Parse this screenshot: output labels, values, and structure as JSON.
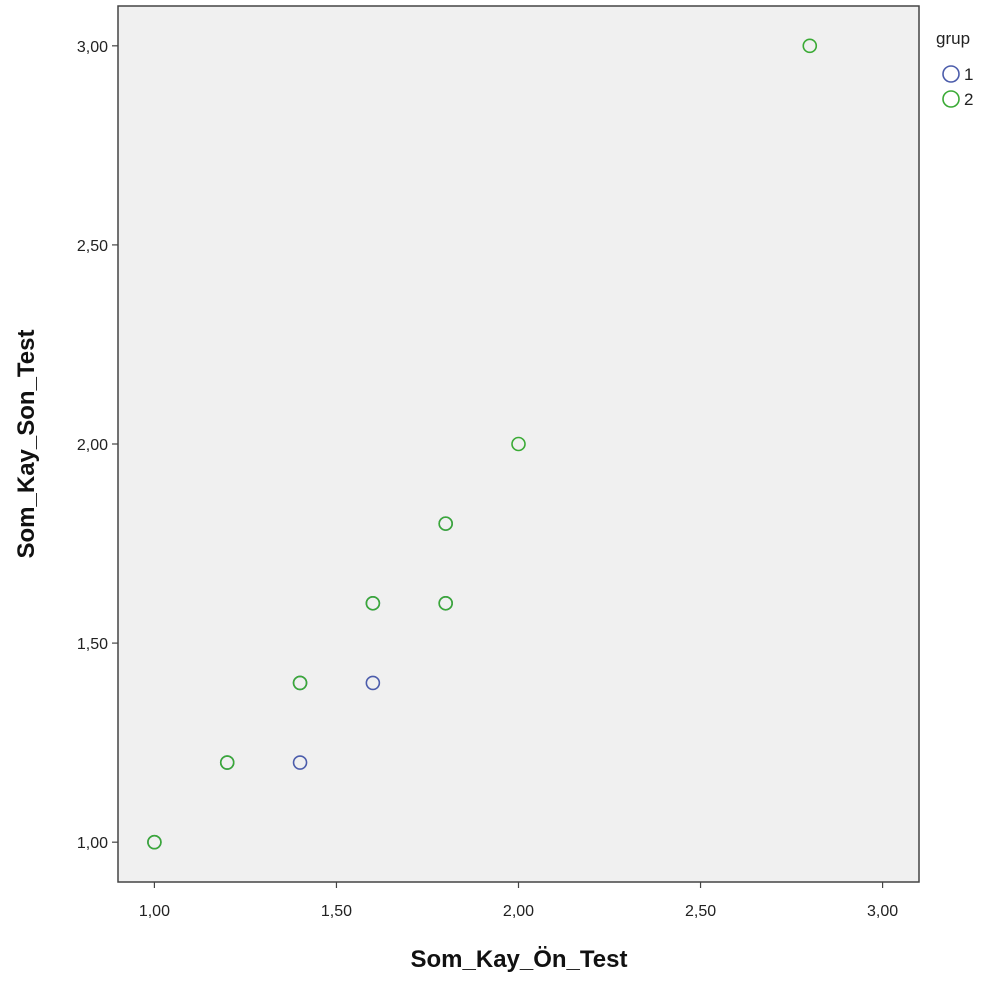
{
  "chart_data": {
    "type": "scatter",
    "xlabel": "Som_Kay_Ön_Test",
    "ylabel": "Som_Kay_Son_Test",
    "xlim": [
      0.9,
      3.1
    ],
    "ylim": [
      0.9,
      3.1
    ],
    "x_ticks": [
      "1,00",
      "1,50",
      "2,00",
      "2,50",
      "3,00"
    ],
    "y_ticks": [
      "1,00",
      "1,50",
      "2,00",
      "2,50",
      "3,00"
    ],
    "grid": false,
    "plot_background": "#f0f0f0",
    "legend": {
      "title": "grup",
      "placement": "top-right-outside",
      "entries": [
        "1",
        "2"
      ]
    },
    "series": [
      {
        "name": "1",
        "color": "#4b5cab",
        "points": [
          {
            "x": 1.0,
            "y": 1.0
          },
          {
            "x": 1.2,
            "y": 1.2
          },
          {
            "x": 1.4,
            "y": 1.2
          },
          {
            "x": 1.4,
            "y": 1.4
          },
          {
            "x": 1.6,
            "y": 1.4
          },
          {
            "x": 1.6,
            "y": 1.6
          },
          {
            "x": 1.8,
            "y": 1.6
          },
          {
            "x": 1.8,
            "y": 1.8
          }
        ]
      },
      {
        "name": "2",
        "color": "#3aaa35",
        "points": [
          {
            "x": 1.0,
            "y": 1.0
          },
          {
            "x": 1.2,
            "y": 1.2
          },
          {
            "x": 1.4,
            "y": 1.4
          },
          {
            "x": 1.6,
            "y": 1.6
          },
          {
            "x": 1.8,
            "y": 1.6
          },
          {
            "x": 1.8,
            "y": 1.8
          },
          {
            "x": 2.0,
            "y": 2.0
          },
          {
            "x": 2.8,
            "y": 3.0
          }
        ]
      }
    ]
  }
}
